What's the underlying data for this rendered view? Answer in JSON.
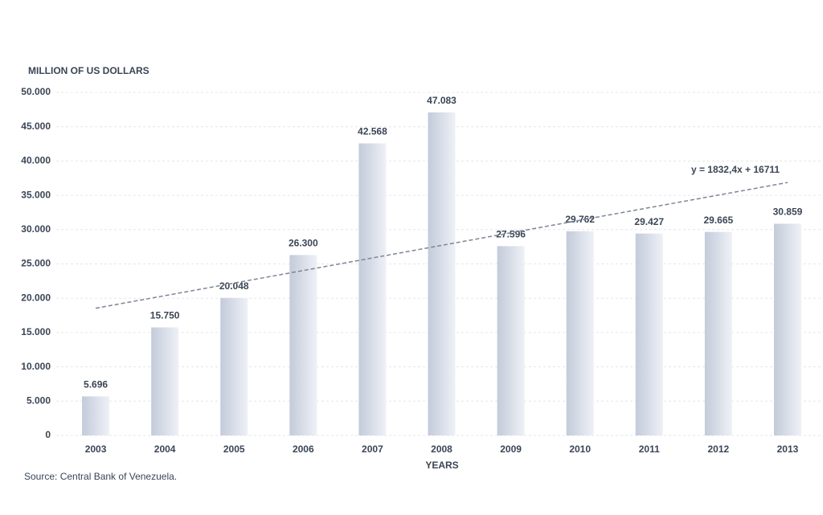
{
  "chart_data": {
    "type": "bar",
    "y_axis_label": "MILLION OF US DOLLARS",
    "x_axis_label": "YEARS",
    "source": "Source: Central Bank of Venezuela.",
    "annotation": "y = 1832,4x + 16711",
    "categories": [
      "2003",
      "2004",
      "2005",
      "2006",
      "2007",
      "2008",
      "2009",
      "2010",
      "2011",
      "2012",
      "2013"
    ],
    "values": [
      5696,
      15750,
      20048,
      26300,
      42568,
      47083,
      27596,
      29762,
      29427,
      29665,
      30859
    ],
    "value_labels": [
      "5.696",
      "15.750",
      "20.048",
      "26.300",
      "42.568",
      "47.083",
      "27.596",
      "29.762",
      "29.427",
      "29.665",
      "30.859"
    ],
    "color": "#c3cbda",
    "ylim": [
      0,
      50000
    ],
    "yticks": [
      0,
      {
        "value": 5000,
        "label": "5.000"
      },
      {
        "value": 10000,
        "label": "10.000"
      },
      {
        "value": 15000,
        "label": "15.000"
      },
      {
        "value": 20000,
        "label": "20.000"
      },
      {
        "value": 25000,
        "label": "25.000"
      },
      {
        "value": 30000,
        "label": "30.000"
      },
      {
        "value": 35000,
        "label": "35.000"
      },
      {
        "value": 40000,
        "label": "40.000"
      },
      {
        "value": 45000,
        "label": "45.000"
      },
      {
        "value": 50000,
        "label": "50.000"
      }
    ],
    "grid": true
  }
}
